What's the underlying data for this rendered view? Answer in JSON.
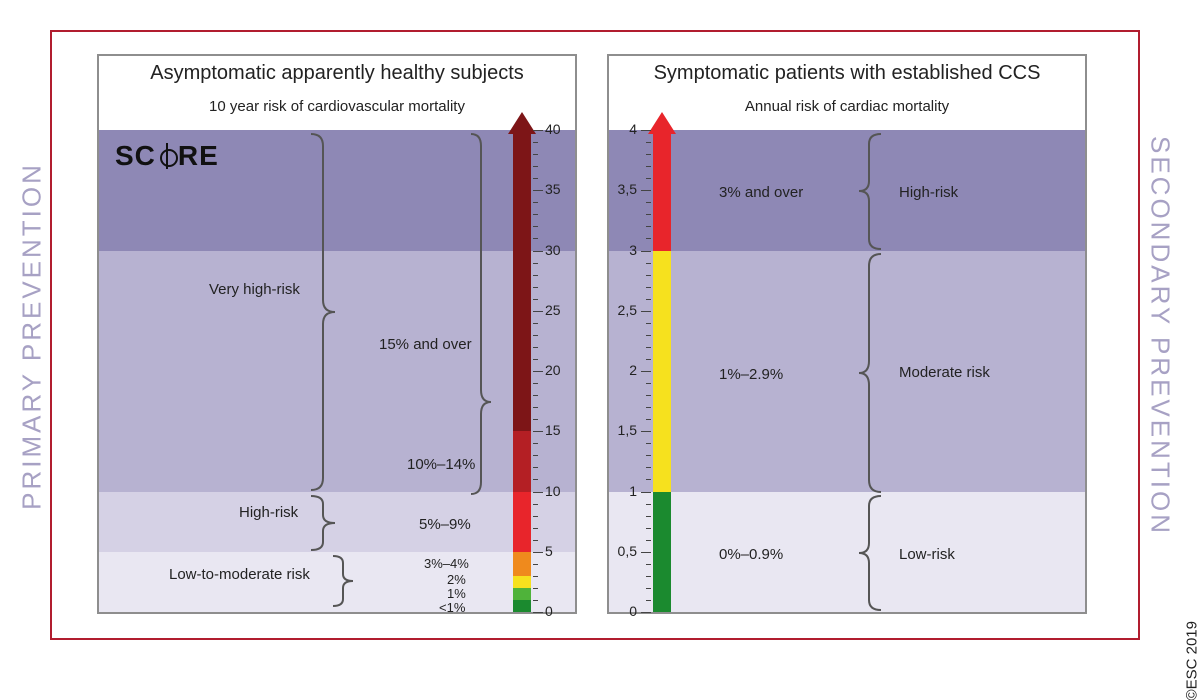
{
  "figure": {
    "border_color": "#b11d2f",
    "side_label_color": "#a7a1c4",
    "side_left": "PRIMARY PREVENTION",
    "side_right": "SECONDARY PREVENTION",
    "copyright": "©ESC 2019"
  },
  "band_colors": {
    "darkest": "#8e88b5",
    "mid": "#b7b2d1",
    "light": "#d5d1e5",
    "lightest": "#e9e7f2"
  },
  "left": {
    "title": "Asymptomatic apparently healthy subjects",
    "subtitle": "10 year risk of cardiovascular mortality",
    "score_logo": "SCORE",
    "bands": [
      {
        "from": 30,
        "to": 40,
        "color_key": "darkest"
      },
      {
        "from": 10,
        "to": 30,
        "color_key": "mid"
      },
      {
        "from": 5,
        "to": 10,
        "color_key": "light"
      },
      {
        "from": 0,
        "to": 5,
        "color_key": "lightest"
      }
    ],
    "category_labels": {
      "very_high": "Very high-risk",
      "high": "High-risk",
      "lowmod": "Low-to-moderate risk"
    },
    "range_labels": {
      "r15": "15% and over",
      "r10": "10%–14%",
      "r5": "5%–9%",
      "r3": "3%–4%",
      "r2": "2%",
      "r1": "1%",
      "r0": "<1%"
    },
    "axis": {
      "min": 0,
      "max": 40,
      "major_ticks": [
        0,
        5,
        10,
        15,
        20,
        25,
        30,
        35,
        40
      ],
      "segments": [
        {
          "from": 0,
          "to": 1,
          "color": "#1b8a2f"
        },
        {
          "from": 1,
          "to": 2,
          "color": "#4fb33a"
        },
        {
          "from": 2,
          "to": 3,
          "color": "#f6e11e"
        },
        {
          "from": 3,
          "to": 5,
          "color": "#ef8a1d"
        },
        {
          "from": 5,
          "to": 10,
          "color": "#e8252b"
        },
        {
          "from": 10,
          "to": 15,
          "color": "#b41f24"
        },
        {
          "from": 15,
          "to": 40,
          "color": "#7d1517"
        }
      ],
      "arrow_color": "#7d1517"
    }
  },
  "right": {
    "title": "Symptomatic patients with established CCS",
    "subtitle": "Annual risk of cardiac mortality",
    "bands": [
      {
        "from": 3,
        "to": 4,
        "color_key": "darkest"
      },
      {
        "from": 1,
        "to": 3,
        "color_key": "mid"
      },
      {
        "from": 0,
        "to": 1,
        "color_key": "lightest"
      }
    ],
    "category_labels": {
      "high": "High-risk",
      "moderate": "Moderate risk",
      "low": "Low-risk"
    },
    "range_labels": {
      "r3": "3% and over",
      "r1": "1%–2.9%",
      "r0": "0%–0.9%"
    },
    "axis": {
      "min": 0,
      "max": 4,
      "major_ticks": [
        0,
        0.5,
        1,
        1.5,
        2,
        2.5,
        3,
        3.5,
        4
      ],
      "tick_labels": [
        "0",
        "0,5",
        "1",
        "1,5",
        "2",
        "2,5",
        "3",
        "3,5",
        "4"
      ],
      "segments": [
        {
          "from": 0,
          "to": 1,
          "color": "#1b8a2f"
        },
        {
          "from": 1,
          "to": 3,
          "color": "#f6e11e"
        },
        {
          "from": 3,
          "to": 4,
          "color": "#e8252b"
        }
      ],
      "arrow_color": "#e8252b"
    }
  }
}
